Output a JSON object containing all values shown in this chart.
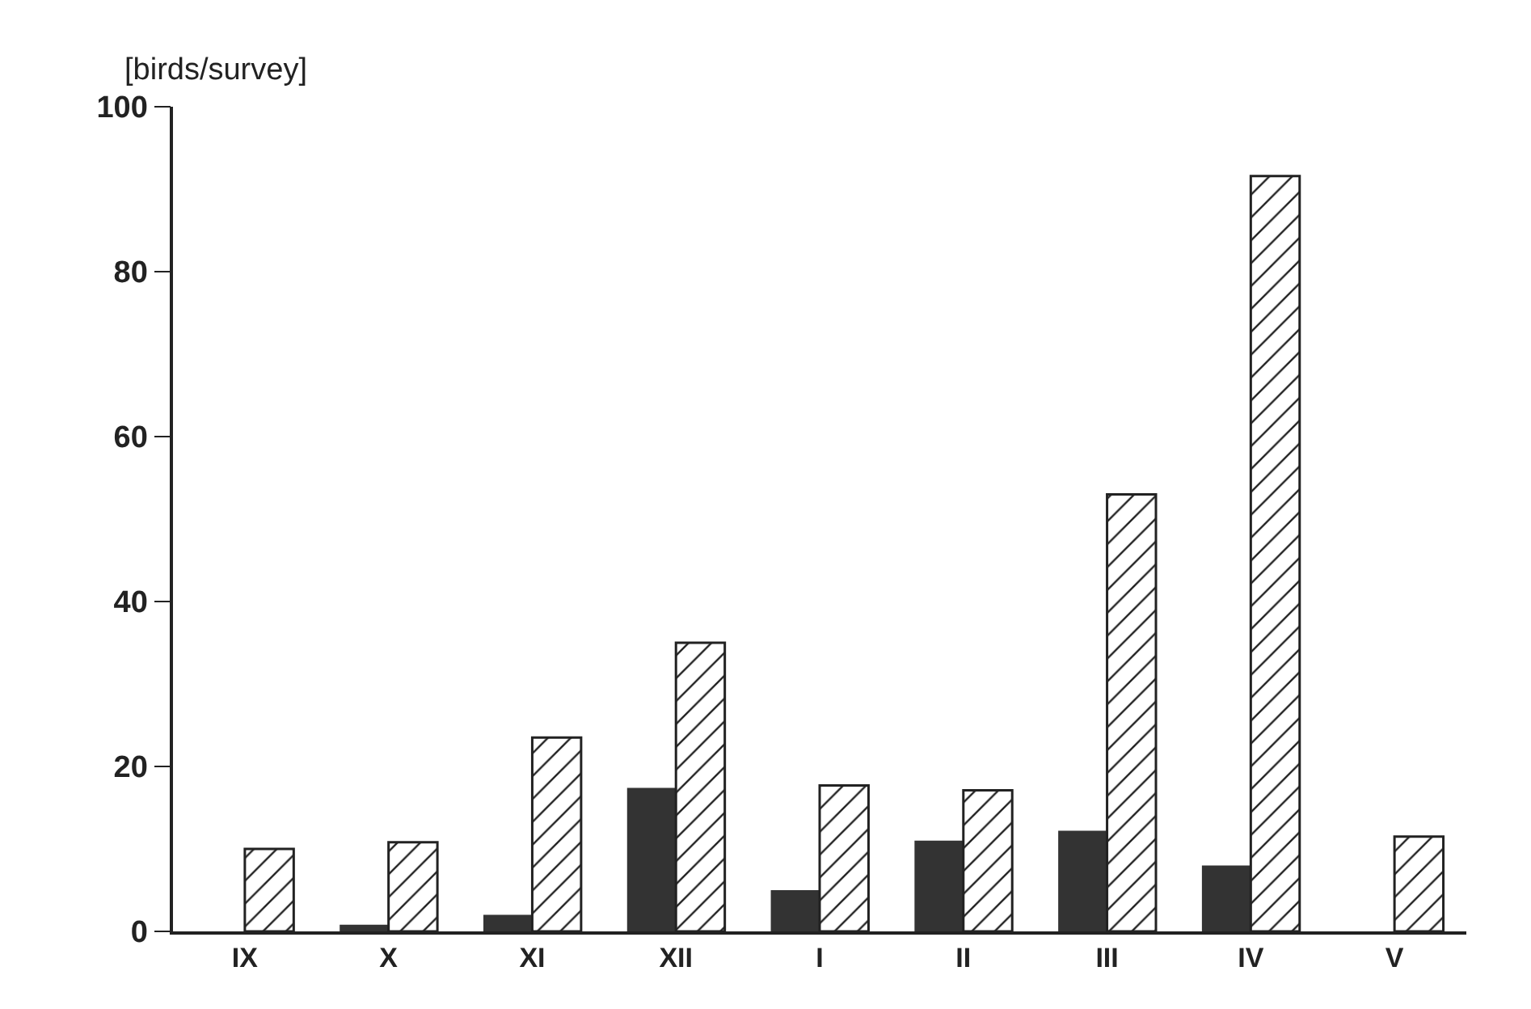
{
  "chart_data": {
    "type": "bar",
    "ylabel": "[birds/survey]",
    "categories": [
      "IX",
      "X",
      "XI",
      "XII",
      "I",
      "II",
      "III",
      "IV",
      "V"
    ],
    "series": [
      {
        "color": "#333333",
        "values": [
          0,
          0.8,
          2,
          17.4,
          5,
          11,
          12.2,
          8,
          0
        ]
      },
      {
        "color": "#222222",
        "values": [
          10,
          10.8,
          23.5,
          35,
          17.7,
          17.1,
          53,
          91.6,
          11.5
        ]
      }
    ],
    "ylim": [
      0,
      100
    ],
    "yticks": [
      0,
      20,
      40,
      60,
      80,
      100
    ],
    "grid": false
  }
}
